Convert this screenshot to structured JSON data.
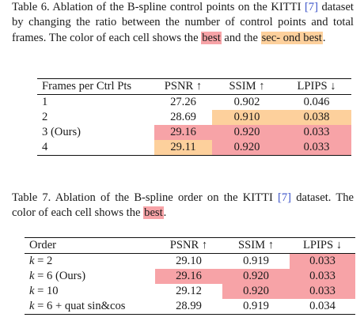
{
  "table6": {
    "caption_parts": [
      "Table 6. Ablation of the B-spline control points on the KITTI ",
      "[7]",
      " dataset by changing the ratio between the number of control points and total frames. The color of each cell shows the ",
      "best",
      " and the ",
      "sec- ond best",
      "."
    ],
    "headers": [
      "Frames per Ctrl Pts",
      "PSNR ↑",
      "SSIM ↑",
      "LPIPS ↓"
    ],
    "rows": [
      {
        "label": "1",
        "psnr": "27.26",
        "ssim": "0.902",
        "lpips": "0.046"
      },
      {
        "label": "2",
        "psnr": "28.69",
        "ssim": "0.910",
        "lpips": "0.038"
      },
      {
        "label": "3 (Ours)",
        "psnr": "29.16",
        "ssim": "0.920",
        "lpips": "0.033"
      },
      {
        "label": "4",
        "psnr": "29.11",
        "ssim": "0.920",
        "lpips": "0.033"
      }
    ],
    "highlights": [
      [
        "none",
        "none",
        "none",
        "none"
      ],
      [
        "none",
        "none",
        "second",
        "second"
      ],
      [
        "none",
        "best",
        "best",
        "best"
      ],
      [
        "none",
        "second",
        "best",
        "best"
      ]
    ]
  },
  "table7": {
    "caption_parts": [
      "Table 7. Ablation of the B-spline order on the KITTI ",
      "[7]",
      " dataset. The color of each cell shows the ",
      "best",
      "."
    ],
    "headers": [
      "Order",
      "PSNR ↑",
      "SSIM ↑",
      "LPIPS ↓"
    ],
    "rows": [
      {
        "label_var": "k",
        "label_rest": " = 2",
        "psnr": "29.10",
        "ssim": "0.919",
        "lpips": "0.033"
      },
      {
        "label_var": "k",
        "label_rest": " = 6 (Ours)",
        "psnr": "29.16",
        "ssim": "0.920",
        "lpips": "0.033"
      },
      {
        "label_var": "k",
        "label_rest": " = 10",
        "psnr": "29.12",
        "ssim": "0.920",
        "lpips": "0.033"
      },
      {
        "label_var": "k",
        "label_rest": " = 6 + quat sin&cos",
        "psnr": "28.99",
        "ssim": "0.919",
        "lpips": "0.034"
      }
    ],
    "highlights": [
      [
        "none",
        "none",
        "none",
        "best"
      ],
      [
        "none",
        "best",
        "best",
        "best"
      ],
      [
        "none",
        "none",
        "best",
        "best"
      ],
      [
        "none",
        "none",
        "none",
        "none"
      ]
    ]
  },
  "colors": {
    "best": "#f7a3a7",
    "second": "#fdd09c",
    "citation": "#3a52c8",
    "text": "#1a1a1a"
  }
}
